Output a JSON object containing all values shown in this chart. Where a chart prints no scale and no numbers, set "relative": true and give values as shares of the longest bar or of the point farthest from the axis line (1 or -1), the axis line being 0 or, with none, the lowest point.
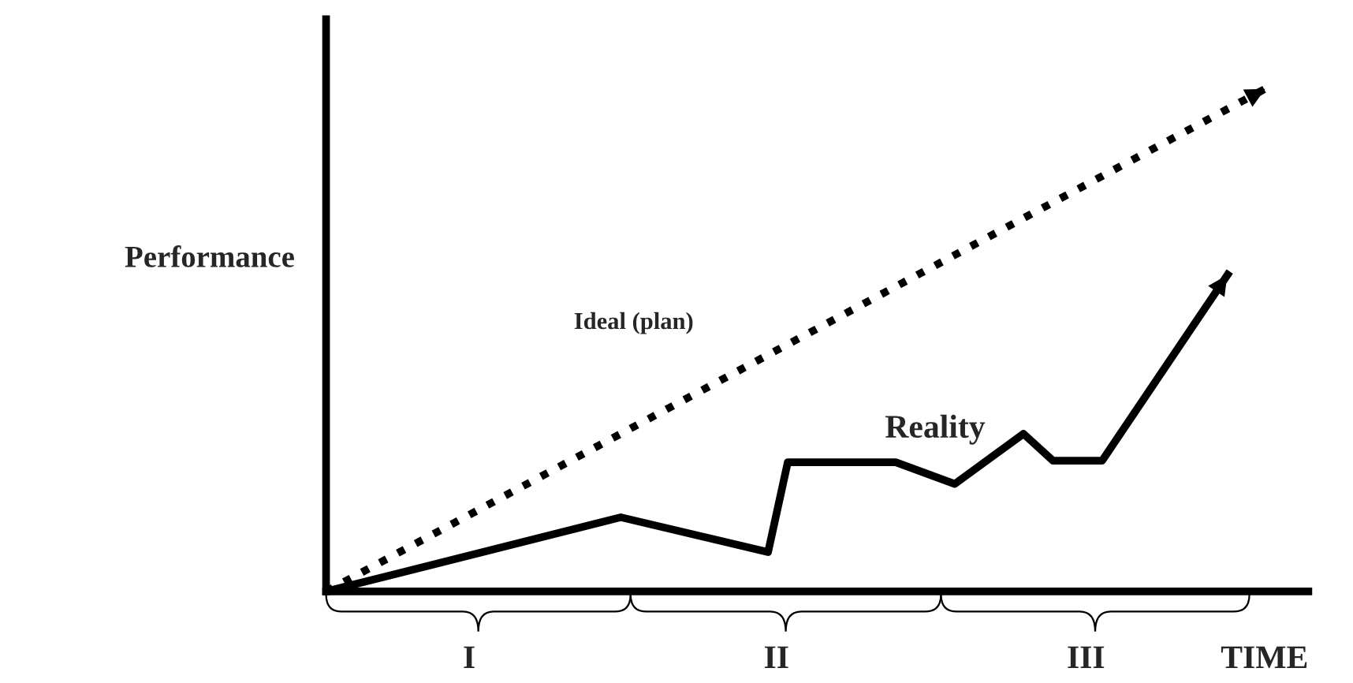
{
  "chart_data": {
    "type": "line",
    "relative": true,
    "ylabel": "Performance",
    "xlabel": "TIME",
    "legend": false,
    "marker": "none",
    "categories": [
      null,
      null,
      null,
      null,
      null,
      null,
      null,
      null,
      null,
      null,
      null,
      null,
      null,
      null,
      null,
      null,
      null,
      null,
      null,
      null,
      null,
      null,
      null,
      null,
      null,
      null,
      null,
      null,
      null,
      null,
      null,
      null,
      null,
      null,
      null,
      null,
      null,
      null,
      null,
      null,
      null,
      null,
      null,
      null,
      null,
      null,
      null,
      null,
      null,
      null,
      null,
      null,
      null,
      null,
      null,
      null,
      null,
      null,
      null,
      null,
      null,
      null,
      null,
      null,
      null,
      null,
      null,
      null,
      null,
      null,
      null,
      null,
      null,
      null,
      null,
      null,
      null,
      null,
      null,
      null,
      null,
      null,
      null,
      null,
      null,
      null,
      null,
      null,
      null,
      null,
      null,
      null,
      null,
      null,
      null,
      null,
      null,
      null,
      null,
      null,
      null
    ],
    "series": [
      {
        "name": "Ideal (plan)",
        "color": "#000000",
        "line_style": "dotted",
        "values": [
          0,
          null,
          null,
          null,
          null,
          null,
          null,
          null,
          null,
          null,
          null,
          null,
          null,
          null,
          null,
          null,
          null,
          null,
          null,
          null,
          null,
          null,
          null,
          null,
          null,
          null,
          null,
          null,
          null,
          null,
          null,
          null,
          null,
          null,
          null,
          null,
          null,
          null,
          null,
          null,
          null,
          null,
          null,
          null,
          null,
          null,
          null,
          null,
          null,
          null,
          null,
          null,
          null,
          null,
          null,
          null,
          null,
          null,
          null,
          null,
          null,
          null,
          null,
          null,
          null,
          null,
          null,
          null,
          null,
          null,
          null,
          null,
          null,
          null,
          null,
          null,
          null,
          null,
          null,
          null,
          null,
          null,
          null,
          null,
          null,
          null,
          null,
          null,
          null,
          null,
          null,
          null,
          null,
          null,
          null,
          null,
          1,
          null,
          null,
          null,
          null
        ]
      },
      {
        "name": "Reality",
        "color": "#000000",
        "line_style": "solid",
        "values": [
          0,
          null,
          null,
          null,
          null,
          null,
          null,
          null,
          null,
          null,
          null,
          null,
          null,
          null,
          null,
          null,
          null,
          null,
          null,
          null,
          null,
          null,
          null,
          null,
          null,
          null,
          null,
          null,
          null,
          null,
          0.147,
          null,
          null,
          null,
          null,
          null,
          null,
          null,
          null,
          null,
          null,
          null,
          null,
          null,
          null,
          0.078,
          null,
          0.256,
          null,
          null,
          null,
          null,
          null,
          null,
          null,
          null,
          null,
          null,
          0.256,
          null,
          null,
          null,
          null,
          null,
          0.213,
          null,
          null,
          null,
          null,
          null,
          null,
          0.3125,
          null,
          null,
          0.259,
          null,
          null,
          null,
          null,
          0.259,
          null,
          null,
          null,
          null,
          null,
          null,
          null,
          null,
          null,
          null,
          null,
          null,
          0.634,
          null,
          null,
          null,
          null,
          null,
          null,
          null,
          null
        ]
      }
    ],
    "annotations": [
      "I",
      "II",
      "III"
    ]
  }
}
